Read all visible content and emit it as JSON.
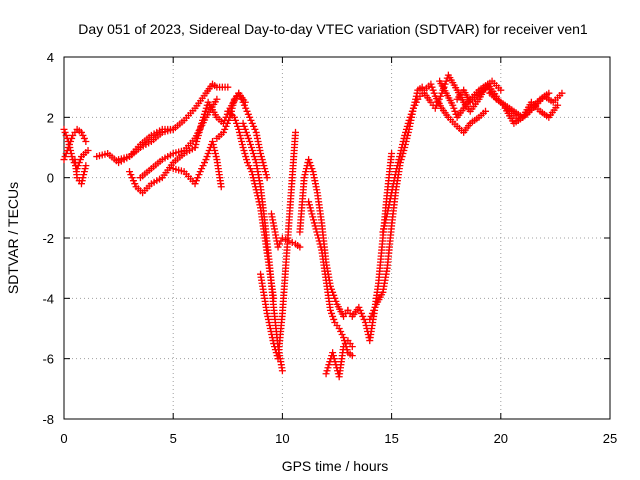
{
  "chart_data": {
    "type": "scatter",
    "title": "Day 051 of 2023, Sidereal Day-to-day VTEC variation (SDTVAR) for receiver ven1",
    "xlabel": "GPS time / hours",
    "ylabel": "SDTVAR / TECUs",
    "xlim": [
      0,
      25
    ],
    "ylim": [
      -8,
      4
    ],
    "x_ticks": [
      "0",
      "5",
      "10",
      "15",
      "20",
      "25"
    ],
    "y_ticks": [
      "4",
      "2",
      "0",
      "-2",
      "-4",
      "-6",
      "-8"
    ],
    "grid": true,
    "legend": "none",
    "marker": "+",
    "colors": {
      "series": "#ff0000",
      "grid": "#a0a0a0",
      "axis": "#000000"
    },
    "series": [
      {
        "x": [
          0.0,
          0.2,
          0.4,
          0.6,
          0.8,
          1.0
        ],
        "y": [
          0.6,
          1.0,
          1.4,
          1.6,
          1.5,
          1.2
        ]
      },
      {
        "x": [
          0.0,
          0.2,
          0.4,
          0.6,
          0.8,
          1.1
        ],
        "y": [
          1.6,
          1.2,
          0.6,
          0.3,
          0.7,
          0.9
        ]
      },
      {
        "x": [
          0.5,
          0.6,
          0.8,
          1.0
        ],
        "y": [
          0.6,
          0.0,
          -0.2,
          0.4
        ]
      },
      {
        "x": [
          1.5,
          2.0,
          2.5,
          3.0,
          3.5,
          4.0,
          4.5,
          5.0
        ],
        "y": [
          0.7,
          0.8,
          0.5,
          0.7,
          1.1,
          1.4,
          1.6,
          1.6
        ]
      },
      {
        "x": [
          2.5,
          3.0,
          3.5,
          4.0,
          4.5,
          5.0,
          5.5,
          6.0,
          6.5,
          6.8,
          7.0,
          7.5
        ],
        "y": [
          0.6,
          0.7,
          1.0,
          1.2,
          1.5,
          1.6,
          1.9,
          2.3,
          2.8,
          3.1,
          3.0,
          3.0
        ]
      },
      {
        "x": [
          3.0,
          3.3,
          3.6,
          4.0,
          4.5,
          5.0,
          5.5,
          6.0
        ],
        "y": [
          0.2,
          -0.3,
          -0.5,
          -0.2,
          0.0,
          0.5,
          0.8,
          1.0
        ]
      },
      {
        "x": [
          3.5,
          4.0,
          4.5,
          5.0,
          5.5,
          6.0,
          6.5,
          7.0
        ],
        "y": [
          0.0,
          0.3,
          0.6,
          0.8,
          0.9,
          1.3,
          2.0,
          2.6
        ]
      },
      {
        "x": [
          5.0,
          5.5,
          6.0,
          6.3,
          6.5,
          6.8,
          7.0,
          7.2
        ],
        "y": [
          0.3,
          0.2,
          -0.2,
          0.3,
          0.6,
          1.2,
          0.6,
          -0.3
        ]
      },
      {
        "x": [
          6.0,
          6.3,
          6.6,
          7.0,
          7.3,
          7.6,
          8.0,
          8.3
        ],
        "y": [
          1.0,
          1.8,
          2.5,
          2.0,
          1.8,
          2.3,
          2.8,
          2.5
        ]
      },
      {
        "x": [
          7.0,
          7.3,
          7.6,
          7.8,
          8.0,
          8.2,
          8.5,
          8.8,
          9.0,
          9.3
        ],
        "y": [
          1.3,
          1.5,
          2.0,
          2.6,
          2.8,
          2.5,
          2.0,
          1.5,
          0.8,
          0.0
        ]
      },
      {
        "x": [
          7.5,
          7.8,
          8.0,
          8.2,
          8.4,
          8.6,
          8.8,
          9.0,
          9.2,
          9.4,
          9.6
        ],
        "y": [
          2.2,
          2.0,
          1.6,
          1.0,
          0.5,
          0.2,
          -0.4,
          -1.0,
          -2.0,
          -3.0,
          -4.0
        ]
      },
      {
        "x": [
          8.2,
          8.5,
          8.8,
          9.0,
          9.2,
          9.4,
          9.6,
          9.8,
          10.0
        ],
        "y": [
          1.8,
          1.2,
          0.5,
          -0.3,
          -1.5,
          -2.8,
          -4.3,
          -5.6,
          -6.4
        ]
      },
      {
        "x": [
          9.0,
          9.3,
          9.6,
          9.8,
          10.0,
          10.2,
          10.4,
          10.6
        ],
        "y": [
          -3.2,
          -4.5,
          -5.5,
          -6.0,
          -4.5,
          -2.5,
          -0.5,
          1.5
        ]
      },
      {
        "x": [
          9.5,
          9.8,
          10.0,
          10.3,
          10.6,
          10.8
        ],
        "y": [
          -1.2,
          -2.3,
          -2.0,
          -2.1,
          -2.2,
          -2.3
        ]
      },
      {
        "x": [
          10.8,
          11.0,
          11.2,
          11.4,
          11.6,
          11.8,
          12.0,
          12.2,
          12.5,
          12.8,
          13.0
        ],
        "y": [
          -1.8,
          0.0,
          0.6,
          0.2,
          -0.5,
          -1.5,
          -2.8,
          -3.6,
          -4.2,
          -4.6,
          -4.4
        ]
      },
      {
        "x": [
          11.2,
          11.5,
          11.8,
          12.0,
          12.2,
          12.4,
          12.6,
          12.8,
          13.0,
          13.2
        ],
        "y": [
          -0.8,
          -1.6,
          -2.4,
          -3.4,
          -4.4,
          -4.8,
          -5.0,
          -5.3,
          -5.8,
          -5.9
        ]
      },
      {
        "x": [
          12.0,
          12.3,
          12.6,
          12.8,
          13.0,
          13.2
        ],
        "y": [
          -6.5,
          -5.8,
          -6.6,
          -5.6,
          -5.4,
          -5.6
        ]
      },
      {
        "x": [
          13.0,
          13.2,
          13.5,
          13.8,
          14.0,
          14.2,
          14.4,
          14.6,
          14.8,
          15.0
        ],
        "y": [
          -4.4,
          -4.6,
          -4.3,
          -4.8,
          -5.4,
          -4.5,
          -3.5,
          -2.0,
          -0.5,
          0.8
        ]
      },
      {
        "x": [
          14.0,
          14.3,
          14.6,
          14.8,
          15.0,
          15.2,
          15.4,
          15.6,
          15.8,
          16.0,
          16.2,
          16.4
        ],
        "y": [
          -4.7,
          -4.2,
          -3.8,
          -3.0,
          -1.6,
          -0.4,
          0.5,
          1.0,
          1.6,
          2.3,
          2.9,
          3.0
        ]
      },
      {
        "x": [
          14.6,
          14.8,
          15.0,
          15.2,
          15.4,
          15.6,
          15.8,
          16.0,
          16.2,
          16.4
        ],
        "y": [
          -1.8,
          -1.2,
          -0.5,
          0.2,
          0.8,
          1.4,
          1.9,
          2.3,
          2.6,
          2.8
        ]
      },
      {
        "x": [
          16.5,
          16.8,
          17.0,
          17.3,
          17.6,
          18.0,
          18.3,
          18.6,
          19.0,
          19.3,
          19.6,
          20.0
        ],
        "y": [
          2.8,
          2.5,
          2.3,
          2.8,
          3.4,
          2.9,
          2.5,
          2.2,
          2.6,
          3.0,
          3.2,
          2.9
        ]
      },
      {
        "x": [
          16.5,
          16.8,
          17.0,
          17.3,
          17.6,
          18.0,
          18.3,
          18.6,
          19.0,
          19.3
        ],
        "y": [
          2.9,
          3.1,
          2.7,
          2.3,
          2.0,
          1.7,
          1.5,
          1.8,
          2.0,
          2.2
        ]
      },
      {
        "x": [
          17.2,
          17.5,
          17.8,
          18.0,
          18.3,
          18.6,
          19.0,
          19.4,
          19.8
        ],
        "y": [
          3.2,
          2.8,
          2.4,
          2.0,
          2.3,
          2.6,
          2.9,
          3.1,
          2.7
        ]
      },
      {
        "x": [
          18.0,
          18.3,
          18.6,
          19.0,
          19.4,
          19.8,
          20.2,
          20.6,
          21.0,
          21.4,
          21.8,
          22.2
        ],
        "y": [
          2.6,
          2.9,
          2.5,
          2.8,
          3.0,
          2.6,
          2.4,
          2.2,
          2.0,
          2.3,
          2.6,
          2.8
        ]
      },
      {
        "x": [
          19.5,
          20.0,
          20.4,
          20.8,
          21.2,
          21.6,
          22.0,
          22.4,
          22.8
        ],
        "y": [
          2.8,
          2.5,
          2.2,
          1.9,
          2.1,
          2.4,
          2.7,
          2.5,
          2.8
        ]
      },
      {
        "x": [
          20.2,
          20.6,
          21.0,
          21.4,
          21.8,
          22.2,
          22.6
        ],
        "y": [
          2.3,
          1.8,
          2.0,
          2.5,
          2.2,
          2.0,
          2.4
        ]
      }
    ]
  }
}
